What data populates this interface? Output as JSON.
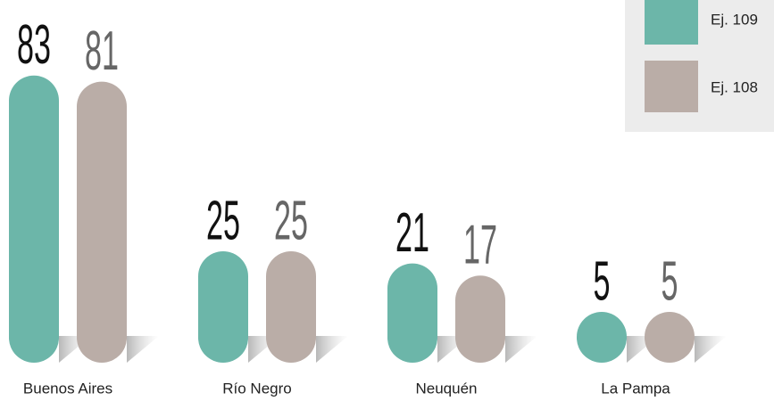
{
  "chart_data": {
    "type": "bar",
    "categories": [
      "Buenos Aires",
      "Río Negro",
      "Neuquén",
      "La Pampa"
    ],
    "series": [
      {
        "name": "Ej. 109",
        "color": "#6cb6a9",
        "values": [
          83,
          25,
          21,
          5
        ]
      },
      {
        "name": "Ej. 108",
        "color": "#baada7",
        "values": [
          81,
          25,
          17,
          5
        ]
      }
    ],
    "legend": "top-right"
  }
}
